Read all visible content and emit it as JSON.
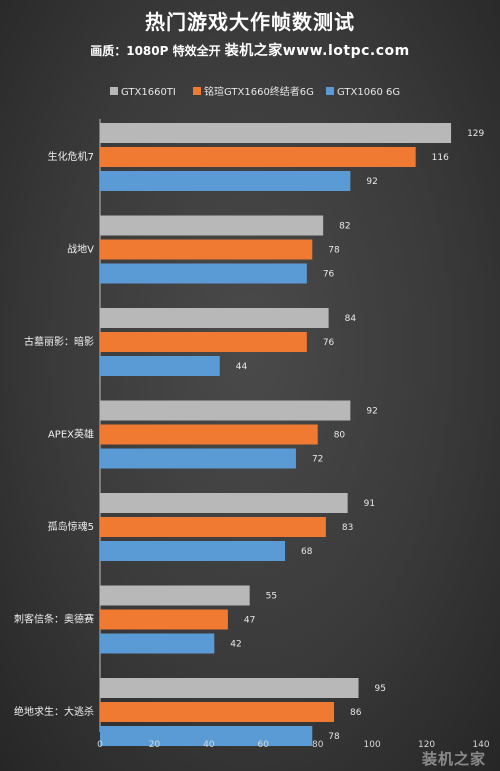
{
  "header": {
    "title": "热门游戏大作帧数测试",
    "quality_label": "画质：1080P 特效全开",
    "brand": "装机之家www.lotpc.com"
  },
  "watermark": "装机之家",
  "colors": {
    "series": [
      "#b8b8b8",
      "#f07a32",
      "#5b9bd5"
    ],
    "axis": "#bfbfbf"
  },
  "chart_data": {
    "type": "bar",
    "orientation": "horizontal",
    "categories": [
      "生化危机7",
      "战地V",
      "古墓丽影：暗影",
      "APEX英雄",
      "孤岛惊魂5",
      "刺客信条：奥德赛",
      "绝地求生：大逃杀"
    ],
    "series": [
      {
        "name": "GTX1660TI",
        "color": "#b8b8b8",
        "values": [
          129,
          82,
          84,
          92,
          91,
          55,
          95
        ]
      },
      {
        "name": "铭瑄GTX1660终结者6G",
        "color": "#f07a32",
        "values": [
          116,
          78,
          76,
          80,
          83,
          47,
          86
        ]
      },
      {
        "name": "GTX1060 6G",
        "color": "#5b9bd5",
        "values": [
          92,
          76,
          44,
          72,
          68,
          42,
          78
        ]
      }
    ],
    "xlim": [
      0,
      140
    ],
    "xticks": [
      "0",
      "20",
      "40",
      "60",
      "80",
      "100",
      "120",
      "140"
    ],
    "grid": false,
    "legend": "top-center",
    "data_labels": true
  }
}
